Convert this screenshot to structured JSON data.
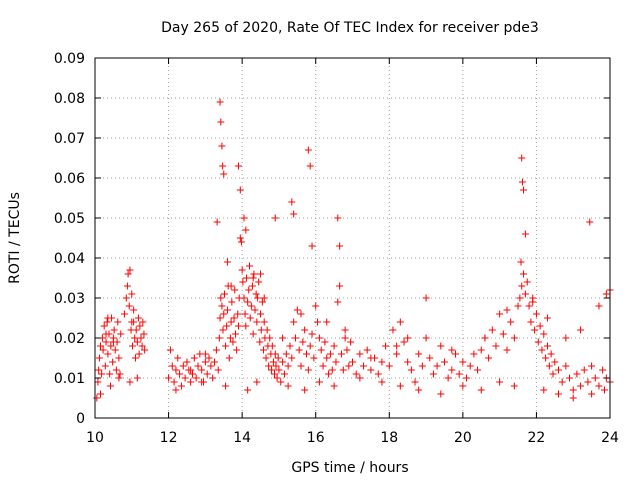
{
  "chart_data": {
    "type": "scatter",
    "title": "Day 265 of 2020, Rate Of TEC Index for receiver pde3",
    "xlabel": "GPS time / hours",
    "ylabel": "ROTI / TECUs",
    "xlim": [
      10,
      24
    ],
    "ylim": [
      0,
      0.09
    ],
    "x_ticks": [
      10,
      12,
      14,
      16,
      18,
      20,
      22,
      24
    ],
    "y_ticks": [
      0,
      0.01,
      0.02,
      0.03,
      0.04,
      0.05,
      0.06,
      0.07,
      0.08,
      0.09
    ],
    "x_tick_labels": [
      "10",
      "12",
      "14",
      "16",
      "18",
      "20",
      "22",
      "24"
    ],
    "y_tick_labels": [
      "0",
      "0.01",
      "0.02",
      "0.03",
      "0.04",
      "0.05",
      "0.06",
      "0.07",
      "0.08",
      "0.09"
    ],
    "grid": true,
    "marker": "plus",
    "color": "#ff0000",
    "series": [
      {
        "x": [
          10.05,
          10.08,
          10.1,
          10.12,
          10.15,
          10.18,
          10.2,
          10.22,
          10.25,
          10.28,
          10.3,
          10.33,
          10.35,
          10.38,
          10.4,
          10.43,
          10.45,
          10.48,
          10.5,
          10.52,
          10.55,
          10.58,
          10.6,
          10.62,
          10.65,
          10.68,
          10.7,
          10.8,
          10.85,
          10.88,
          10.9,
          10.93,
          10.95,
          10.98,
          11.0,
          11.02,
          11.05,
          11.08,
          11.1,
          11.12,
          11.15,
          11.18,
          11.2,
          11.22,
          11.25,
          11.28,
          11.3,
          11.33,
          11.35,
          12.0,
          12.05,
          12.1,
          12.15,
          12.2,
          12.25,
          12.3,
          12.35,
          12.4,
          12.45,
          12.5,
          12.55,
          12.6,
          12.65,
          12.7,
          12.75,
          12.8,
          12.85,
          12.9,
          12.95,
          13.0,
          13.05,
          13.1,
          13.15,
          13.2,
          13.25,
          13.3,
          13.35,
          13.38,
          13.4,
          13.42,
          13.45,
          13.48,
          13.5,
          13.52,
          13.55,
          13.58,
          13.6,
          13.62,
          13.65,
          13.68,
          13.7,
          13.72,
          13.75,
          13.78,
          13.8,
          13.82,
          13.85,
          13.88,
          13.9,
          13.92,
          13.95,
          13.98,
          14.0,
          14.02,
          14.05,
          14.08,
          14.1,
          14.12,
          14.15,
          14.18,
          14.2,
          14.22,
          14.25,
          14.28,
          14.3,
          14.32,
          14.35,
          14.38,
          14.4,
          14.42,
          14.45,
          14.48,
          14.5,
          14.52,
          14.55,
          14.58,
          14.6,
          14.62,
          14.65,
          14.68,
          14.7,
          14.72,
          14.75,
          14.78,
          14.8,
          14.82,
          14.85,
          14.88,
          14.9,
          14.92,
          14.95,
          14.98,
          15.0,
          15.05,
          15.1,
          15.15,
          15.2,
          15.25,
          15.3,
          15.35,
          15.4,
          15.45,
          15.5,
          15.55,
          15.6,
          15.65,
          15.7,
          15.75,
          15.8,
          15.85,
          15.9,
          15.95,
          16.0,
          16.05,
          16.1,
          16.15,
          16.2,
          16.25,
          16.3,
          16.35,
          16.4,
          16.45,
          16.5,
          16.55,
          16.6,
          16.65,
          16.7,
          16.75,
          16.8,
          16.85,
          16.9,
          16.95,
          17.0,
          17.1,
          17.2,
          17.3,
          17.4,
          17.5,
          17.6,
          17.7,
          17.8,
          17.9,
          18.0,
          18.1,
          18.2,
          18.3,
          18.4,
          18.5,
          18.6,
          18.7,
          18.8,
          18.9,
          19.0,
          19.1,
          19.2,
          19.3,
          19.4,
          19.5,
          19.6,
          19.7,
          19.8,
          19.9,
          20.0,
          20.1,
          20.2,
          20.3,
          20.4,
          20.5,
          20.6,
          20.7,
          20.8,
          20.9,
          21.0,
          21.1,
          21.2,
          21.3,
          21.4,
          21.5,
          21.55,
          21.6,
          21.65,
          21.7,
          21.75,
          21.8,
          21.85,
          21.9,
          21.95,
          22.0,
          22.05,
          22.1,
          22.15,
          22.2,
          22.25,
          22.3,
          22.35,
          22.4,
          22.45,
          22.5,
          22.6,
          22.7,
          22.8,
          22.9,
          23.0,
          23.1,
          23.2,
          23.3,
          23.4,
          23.5,
          23.6,
          23.7,
          23.8,
          23.9,
          24.0,
          13.4,
          13.42,
          13.45,
          13.47,
          13.5,
          13.32,
          13.9,
          13.95,
          14.05,
          14.1,
          14.9,
          15.35,
          15.4,
          15.8,
          15.85,
          15.9,
          16.6,
          16.65,
          21.6,
          21.62,
          21.65,
          21.7,
          21.58,
          23.45,
          10.3,
          10.35,
          10.5,
          11.0,
          11.05,
          12.6,
          13.0,
          13.6,
          13.7,
          14.3,
          14.5,
          14.6,
          15.1,
          15.6,
          16.3,
          16.8,
          17.5,
          18.2,
          18.5,
          19.0,
          19.7,
          20.6,
          21.2,
          21.9,
          22.3,
          22.8,
          23.2,
          23.7,
          23.9,
          24.0,
          10.15,
          10.42,
          10.65,
          10.95,
          11.15,
          12.2,
          12.9,
          13.55,
          14.15,
          14.4,
          15.25,
          15.7,
          16.1,
          16.5,
          17.2,
          17.8,
          18.3,
          18.8,
          19.4,
          20.0,
          20.5,
          21.0,
          21.4,
          22.2,
          22.6,
          23.0,
          23.5,
          23.85
        ],
        "y": [
          0.005,
          0.009,
          0.012,
          0.015,
          0.018,
          0.011,
          0.02,
          0.017,
          0.023,
          0.013,
          0.019,
          0.024,
          0.016,
          0.021,
          0.011,
          0.018,
          0.025,
          0.014,
          0.02,
          0.022,
          0.017,
          0.012,
          0.019,
          0.024,
          0.015,
          0.011,
          0.021,
          0.026,
          0.03,
          0.033,
          0.036,
          0.028,
          0.037,
          0.022,
          0.031,
          0.018,
          0.024,
          0.02,
          0.015,
          0.022,
          0.019,
          0.025,
          0.016,
          0.023,
          0.02,
          0.018,
          0.024,
          0.021,
          0.017,
          0.01,
          0.017,
          0.013,
          0.009,
          0.012,
          0.015,
          0.011,
          0.008,
          0.013,
          0.01,
          0.014,
          0.012,
          0.009,
          0.011,
          0.015,
          0.01,
          0.013,
          0.016,
          0.012,
          0.009,
          0.014,
          0.011,
          0.015,
          0.013,
          0.01,
          0.014,
          0.017,
          0.012,
          0.02,
          0.025,
          0.03,
          0.028,
          0.022,
          0.026,
          0.031,
          0.018,
          0.023,
          0.027,
          0.033,
          0.015,
          0.02,
          0.024,
          0.029,
          0.019,
          0.025,
          0.032,
          0.021,
          0.017,
          0.026,
          0.023,
          0.03,
          0.045,
          0.044,
          0.037,
          0.034,
          0.03,
          0.026,
          0.023,
          0.035,
          0.029,
          0.032,
          0.038,
          0.025,
          0.028,
          0.033,
          0.021,
          0.036,
          0.027,
          0.031,
          0.024,
          0.03,
          0.034,
          0.019,
          0.026,
          0.022,
          0.029,
          0.017,
          0.024,
          0.02,
          0.015,
          0.022,
          0.018,
          0.013,
          0.02,
          0.016,
          0.012,
          0.018,
          0.014,
          0.011,
          0.016,
          0.013,
          0.01,
          0.015,
          0.012,
          0.009,
          0.014,
          0.011,
          0.016,
          0.013,
          0.018,
          0.015,
          0.024,
          0.02,
          0.027,
          0.017,
          0.013,
          0.019,
          0.022,
          0.016,
          0.012,
          0.018,
          0.021,
          0.015,
          0.028,
          0.024,
          0.02,
          0.017,
          0.013,
          0.019,
          0.015,
          0.011,
          0.016,
          0.012,
          0.018,
          0.014,
          0.029,
          0.033,
          0.016,
          0.012,
          0.02,
          0.017,
          0.013,
          0.019,
          0.014,
          0.011,
          0.016,
          0.013,
          0.017,
          0.012,
          0.015,
          0.011,
          0.014,
          0.018,
          0.013,
          0.022,
          0.016,
          0.024,
          0.019,
          0.014,
          0.012,
          0.009,
          0.016,
          0.013,
          0.02,
          0.015,
          0.011,
          0.013,
          0.018,
          0.014,
          0.01,
          0.012,
          0.016,
          0.011,
          0.014,
          0.01,
          0.013,
          0.016,
          0.012,
          0.017,
          0.02,
          0.015,
          0.022,
          0.018,
          0.026,
          0.021,
          0.017,
          0.024,
          0.02,
          0.028,
          0.03,
          0.033,
          0.036,
          0.031,
          0.034,
          0.028,
          0.024,
          0.029,
          0.022,
          0.026,
          0.019,
          0.023,
          0.017,
          0.021,
          0.015,
          0.018,
          0.013,
          0.016,
          0.011,
          0.014,
          0.012,
          0.009,
          0.013,
          0.01,
          0.007,
          0.011,
          0.008,
          0.012,
          0.009,
          0.013,
          0.01,
          0.008,
          0.012,
          0.01,
          0.009,
          0.079,
          0.074,
          0.068,
          0.063,
          0.061,
          0.049,
          0.063,
          0.057,
          0.05,
          0.047,
          0.05,
          0.054,
          0.051,
          0.067,
          0.063,
          0.043,
          0.05,
          0.043,
          0.065,
          0.059,
          0.057,
          0.046,
          0.039,
          0.049,
          0.021,
          0.025,
          0.019,
          0.024,
          0.027,
          0.012,
          0.016,
          0.039,
          0.033,
          0.035,
          0.036,
          0.03,
          0.02,
          0.026,
          0.024,
          0.022,
          0.015,
          0.018,
          0.02,
          0.03,
          0.017,
          0.02,
          0.027,
          0.03,
          0.025,
          0.02,
          0.022,
          0.028,
          0.031,
          0.032,
          0.006,
          0.008,
          0.01,
          0.009,
          0.01,
          0.007,
          0.009,
          0.008,
          0.007,
          0.009,
          0.008,
          0.007,
          0.009,
          0.008,
          0.01,
          0.009,
          0.008,
          0.007,
          0.006,
          0.008,
          0.007,
          0.009,
          0.008,
          0.007,
          0.006,
          0.005,
          0.006,
          0.007
        ]
      }
    ]
  }
}
